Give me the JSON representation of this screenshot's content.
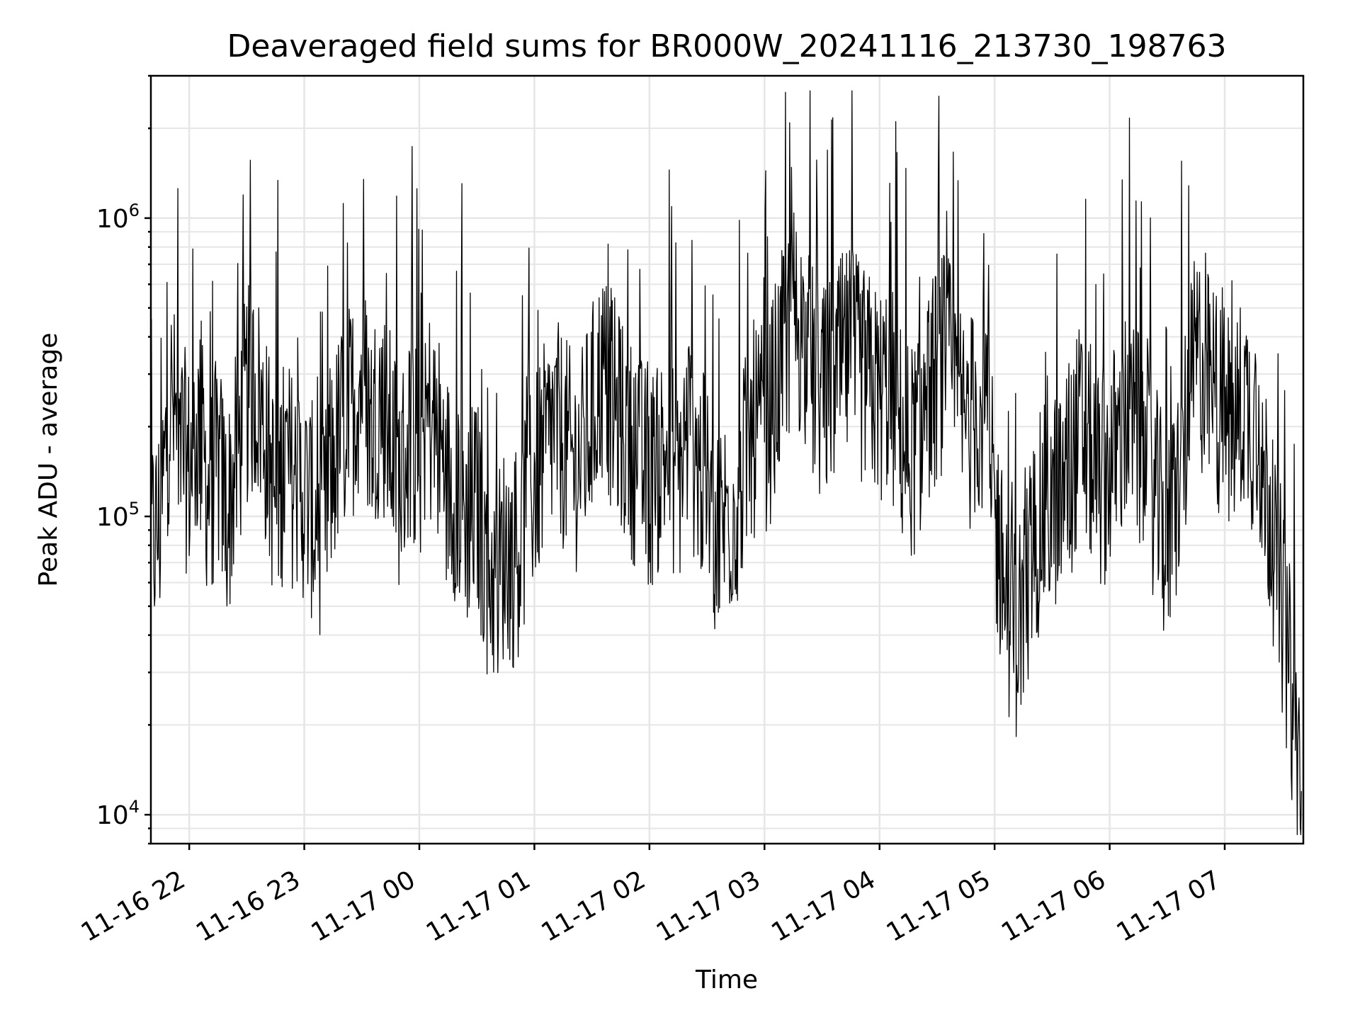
{
  "chart_data": {
    "type": "line",
    "title": "Deaveraged field sums for BR000W_20241116_213730_198763",
    "xlabel": "Time",
    "ylabel": "Peak ADU - average",
    "yscale": "log",
    "ylim": [
      8000,
      3000000
    ],
    "xlim": [
      "2024-11-16 21:40",
      "2024-11-17 07:41"
    ],
    "grid": true,
    "line_color": "#000000",
    "x_ticks": [
      {
        "time": "2024-11-16 22:00",
        "label": "11-16 22"
      },
      {
        "time": "2024-11-16 23:00",
        "label": "11-16 23"
      },
      {
        "time": "2024-11-17 00:00",
        "label": "11-17 00"
      },
      {
        "time": "2024-11-17 01:00",
        "label": "11-17 01"
      },
      {
        "time": "2024-11-17 02:00",
        "label": "11-17 02"
      },
      {
        "time": "2024-11-17 03:00",
        "label": "11-17 03"
      },
      {
        "time": "2024-11-17 04:00",
        "label": "11-17 04"
      },
      {
        "time": "2024-11-17 05:00",
        "label": "11-17 05"
      },
      {
        "time": "2024-11-17 06:00",
        "label": "11-17 06"
      },
      {
        "time": "2024-11-17 07:00",
        "label": "11-17 07"
      }
    ],
    "y_ticks": [
      {
        "value": 10000,
        "base": "10",
        "exp": "4"
      },
      {
        "value": 100000,
        "base": "10",
        "exp": "5"
      },
      {
        "value": 1000000,
        "base": "10",
        "exp": "6"
      }
    ],
    "x": [
      "2024-11-16 21:40",
      "2024-11-16 21:45",
      "2024-11-16 21:50",
      "2024-11-16 21:55",
      "2024-11-16 22:00",
      "2024-11-16 22:05",
      "2024-11-16 22:10",
      "2024-11-16 22:15",
      "2024-11-16 22:20",
      "2024-11-16 22:25",
      "2024-11-16 22:30",
      "2024-11-16 22:35",
      "2024-11-16 22:40",
      "2024-11-16 22:45",
      "2024-11-16 22:50",
      "2024-11-16 22:55",
      "2024-11-16 23:00",
      "2024-11-16 23:05",
      "2024-11-16 23:10",
      "2024-11-16 23:15",
      "2024-11-16 23:20",
      "2024-11-16 23:25",
      "2024-11-16 23:30",
      "2024-11-16 23:35",
      "2024-11-16 23:40",
      "2024-11-16 23:45",
      "2024-11-16 23:50",
      "2024-11-16 23:55",
      "2024-11-17 00:00",
      "2024-11-17 00:05",
      "2024-11-17 00:10",
      "2024-11-17 00:15",
      "2024-11-17 00:20",
      "2024-11-17 00:25",
      "2024-11-17 00:30",
      "2024-11-17 00:35",
      "2024-11-17 00:40",
      "2024-11-17 00:45",
      "2024-11-17 00:50",
      "2024-11-17 00:55",
      "2024-11-17 01:00",
      "2024-11-17 01:05",
      "2024-11-17 01:10",
      "2024-11-17 01:15",
      "2024-11-17 01:20",
      "2024-11-17 01:25",
      "2024-11-17 01:30",
      "2024-11-17 01:35",
      "2024-11-17 01:40",
      "2024-11-17 01:45",
      "2024-11-17 01:50",
      "2024-11-17 01:55",
      "2024-11-17 02:00",
      "2024-11-17 02:05",
      "2024-11-17 02:10",
      "2024-11-17 02:15",
      "2024-11-17 02:20",
      "2024-11-17 02:25",
      "2024-11-17 02:30",
      "2024-11-17 02:35",
      "2024-11-17 02:40",
      "2024-11-17 02:45",
      "2024-11-17 02:50",
      "2024-11-17 02:55",
      "2024-11-17 03:00",
      "2024-11-17 03:05",
      "2024-11-17 03:10",
      "2024-11-17 03:15",
      "2024-11-17 03:20",
      "2024-11-17 03:25",
      "2024-11-17 03:30",
      "2024-11-17 03:35",
      "2024-11-17 03:40",
      "2024-11-17 03:45",
      "2024-11-17 03:50",
      "2024-11-17 03:55",
      "2024-11-17 04:00",
      "2024-11-17 04:05",
      "2024-11-17 04:10",
      "2024-11-17 04:15",
      "2024-11-17 04:20",
      "2024-11-17 04:25",
      "2024-11-17 04:30",
      "2024-11-17 04:35",
      "2024-11-17 04:40",
      "2024-11-17 04:45",
      "2024-11-17 04:50",
      "2024-11-17 04:55",
      "2024-11-17 05:00",
      "2024-11-17 05:05",
      "2024-11-17 05:10",
      "2024-11-17 05:15",
      "2024-11-17 05:20",
      "2024-11-17 05:25",
      "2024-11-17 05:30",
      "2024-11-17 05:35",
      "2024-11-17 05:40",
      "2024-11-17 05:45",
      "2024-11-17 05:50",
      "2024-11-17 05:55",
      "2024-11-17 06:00",
      "2024-11-17 06:05",
      "2024-11-17 06:10",
      "2024-11-17 06:15",
      "2024-11-17 06:20",
      "2024-11-17 06:25",
      "2024-11-17 06:30",
      "2024-11-17 06:35",
      "2024-11-17 06:40",
      "2024-11-17 06:45",
      "2024-11-17 06:50",
      "2024-11-17 06:55",
      "2024-11-17 07:00",
      "2024-11-17 07:05",
      "2024-11-17 07:10",
      "2024-11-17 07:15",
      "2024-11-17 07:20",
      "2024-11-17 07:25",
      "2024-11-17 07:30",
      "2024-11-17 07:35",
      "2024-11-17 07:40"
    ],
    "y": [
      80000,
      95000,
      250000,
      180000,
      140000,
      200000,
      120000,
      150000,
      100000,
      160000,
      250000,
      270000,
      180000,
      110000,
      150000,
      130000,
      120000,
      100000,
      90000,
      150000,
      200000,
      230000,
      300000,
      200000,
      250000,
      180000,
      130000,
      190000,
      160000,
      220000,
      180000,
      130000,
      120000,
      100000,
      110000,
      70000,
      60000,
      80000,
      70000,
      100000,
      130000,
      160000,
      200000,
      180000,
      150000,
      160000,
      220000,
      300000,
      250000,
      200000,
      170000,
      150000,
      130000,
      150000,
      170000,
      130000,
      200000,
      150000,
      120000,
      90000,
      100000,
      110000,
      150000,
      200000,
      180000,
      250000,
      350000,
      500000,
      400000,
      300000,
      250000,
      280000,
      320000,
      350000,
      300000,
      280000,
      250000,
      280000,
      200000,
      160000,
      180000,
      250000,
      300000,
      350000,
      250000,
      200000,
      220000,
      250000,
      100000,
      60000,
      40000,
      50000,
      80000,
      100000,
      110000,
      120000,
      150000,
      200000,
      160000,
      130000,
      150000,
      180000,
      220000,
      180000,
      150000,
      110000,
      80000,
      120000,
      200000,
      350000,
      300000,
      250000,
      220000,
      200000,
      250000,
      200000,
      150000,
      90000,
      50000,
      25000,
      12000
    ]
  }
}
